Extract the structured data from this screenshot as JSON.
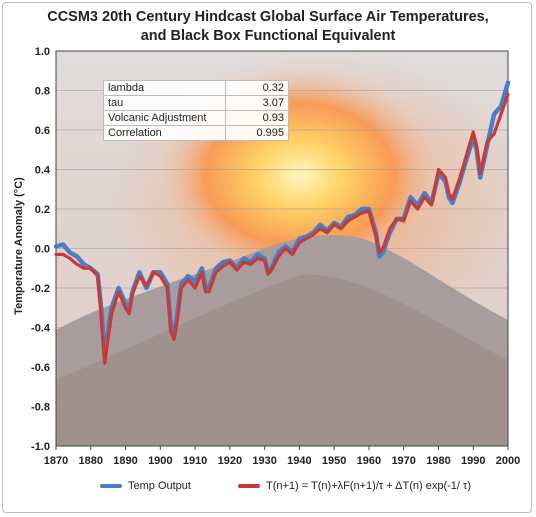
{
  "chart_data": {
    "type": "line",
    "title_line1": "CCSM3 20th Century Hindcast Global Surface Air Temperatures,",
    "title_line2": "and Black Box Functional Equivalent",
    "xlabel": "",
    "ylabel": "Temperature Anomaly (°C)",
    "xlim": [
      1870,
      2000
    ],
    "ylim": [
      -1.0,
      1.0
    ],
    "x_ticks": [
      "1870",
      "1880",
      "1890",
      "1900",
      "1910",
      "1920",
      "1930",
      "1940",
      "1950",
      "1960",
      "1970",
      "1980",
      "1990",
      "2000"
    ],
    "y_ticks": [
      "1.0",
      "0.8",
      "0.6",
      "0.4",
      "0.2",
      "0.0",
      "-0.2",
      "-0.4",
      "-0.6",
      "-0.8",
      "-1.0"
    ],
    "grid": "horizontal",
    "background": "volcanic eruption photograph (faded)",
    "series": [
      {
        "name": "Temp Output",
        "color": "#4a7ec4",
        "x": [
          1870,
          1872,
          1874,
          1876,
          1878,
          1880,
          1882,
          1883,
          1884,
          1885,
          1886,
          1888,
          1890,
          1891,
          1892,
          1894,
          1896,
          1898,
          1900,
          1902,
          1903,
          1904,
          1905,
          1906,
          1908,
          1910,
          1912,
          1913,
          1914,
          1916,
          1918,
          1920,
          1922,
          1924,
          1926,
          1928,
          1930,
          1931,
          1932,
          1934,
          1936,
          1938,
          1940,
          1942,
          1944,
          1946,
          1948,
          1950,
          1952,
          1954,
          1956,
          1958,
          1960,
          1962,
          1963,
          1964,
          1965,
          1966,
          1968,
          1970,
          1972,
          1974,
          1976,
          1978,
          1980,
          1982,
          1983,
          1984,
          1986,
          1988,
          1990,
          1991,
          1992,
          1994,
          1996,
          1998,
          2000
        ],
        "y": [
          0.01,
          0.02,
          -0.02,
          -0.04,
          -0.08,
          -0.1,
          -0.13,
          -0.3,
          -0.55,
          -0.42,
          -0.3,
          -0.2,
          -0.28,
          -0.32,
          -0.22,
          -0.12,
          -0.2,
          -0.12,
          -0.12,
          -0.18,
          -0.38,
          -0.44,
          -0.32,
          -0.18,
          -0.14,
          -0.17,
          -0.1,
          -0.2,
          -0.2,
          -0.1,
          -0.07,
          -0.06,
          -0.1,
          -0.05,
          -0.07,
          -0.03,
          -0.05,
          -0.12,
          -0.1,
          -0.02,
          0.01,
          -0.02,
          0.05,
          0.06,
          0.08,
          0.12,
          0.09,
          0.13,
          0.11,
          0.16,
          0.17,
          0.2,
          0.2,
          0.08,
          -0.04,
          -0.02,
          0.03,
          0.08,
          0.15,
          0.15,
          0.26,
          0.22,
          0.28,
          0.23,
          0.38,
          0.34,
          0.26,
          0.23,
          0.33,
          0.45,
          0.56,
          0.5,
          0.36,
          0.52,
          0.68,
          0.72,
          0.84
        ]
      },
      {
        "name": "T(n+1) = T(n)+λF(n+1)/τ + ΔT(n) exp(-1/ τ)",
        "color": "#c83a3a",
        "x": [
          1870,
          1872,
          1874,
          1876,
          1878,
          1880,
          1882,
          1883,
          1884,
          1885,
          1886,
          1888,
          1890,
          1891,
          1892,
          1894,
          1896,
          1898,
          1900,
          1902,
          1903,
          1904,
          1905,
          1906,
          1908,
          1910,
          1912,
          1913,
          1914,
          1916,
          1918,
          1920,
          1922,
          1924,
          1926,
          1928,
          1930,
          1931,
          1932,
          1934,
          1936,
          1938,
          1940,
          1942,
          1944,
          1946,
          1948,
          1950,
          1952,
          1954,
          1956,
          1958,
          1960,
          1962,
          1963,
          1964,
          1965,
          1966,
          1968,
          1970,
          1972,
          1974,
          1976,
          1978,
          1980,
          1982,
          1983,
          1984,
          1986,
          1988,
          1990,
          1991,
          1992,
          1994,
          1996,
          1998,
          2000
        ],
        "y": [
          -0.03,
          -0.03,
          -0.05,
          -0.08,
          -0.1,
          -0.1,
          -0.14,
          -0.35,
          -0.58,
          -0.45,
          -0.33,
          -0.22,
          -0.3,
          -0.33,
          -0.23,
          -0.14,
          -0.19,
          -0.12,
          -0.14,
          -0.2,
          -0.42,
          -0.46,
          -0.35,
          -0.2,
          -0.16,
          -0.2,
          -0.12,
          -0.22,
          -0.22,
          -0.12,
          -0.09,
          -0.07,
          -0.11,
          -0.07,
          -0.08,
          -0.05,
          -0.06,
          -0.13,
          -0.11,
          -0.04,
          0.0,
          -0.03,
          0.03,
          0.05,
          0.07,
          0.1,
          0.08,
          0.12,
          0.1,
          0.14,
          0.16,
          0.18,
          0.19,
          0.06,
          -0.02,
          0.0,
          0.05,
          0.1,
          0.15,
          0.14,
          0.24,
          0.2,
          0.26,
          0.22,
          0.4,
          0.36,
          0.28,
          0.25,
          0.35,
          0.47,
          0.59,
          0.52,
          0.38,
          0.54,
          0.58,
          0.68,
          0.78
        ]
      }
    ]
  },
  "info_table": [
    {
      "label": "lambda",
      "value": "0.32"
    },
    {
      "label": "tau",
      "value": "3.07"
    },
    {
      "label": "Volcanic Adjustment",
      "value": "0.93"
    },
    {
      "label": "Correlation",
      "value": "0.995"
    }
  ],
  "legend": {
    "item1": "Temp Output",
    "item2": "T(n+1) = T(n)+λF(n+1)/τ + ΔT(n) exp(-1/ τ)"
  }
}
